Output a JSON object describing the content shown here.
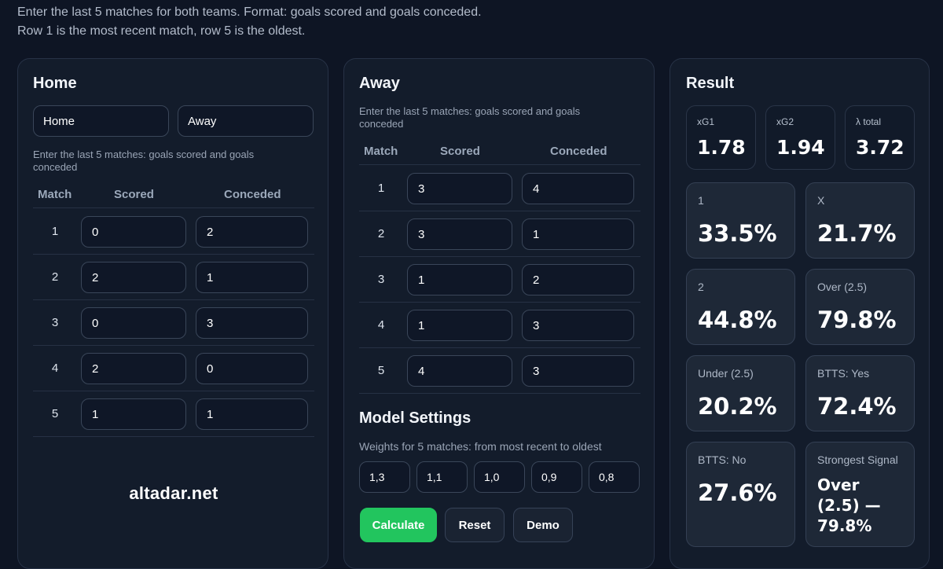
{
  "intro": {
    "line1": "Enter the last 5 matches for both teams. Format: goals scored and goals conceded.",
    "line2": "Row 1 is the most recent match, row 5 is the oldest."
  },
  "home": {
    "title": "Home",
    "team_home_value": "Home",
    "team_away_value": "Away",
    "hint": "Enter the last 5 matches: goals scored and goals conceded",
    "headers": [
      "Match",
      "Scored",
      "Conceded"
    ],
    "rows": [
      {
        "match": "1",
        "scored": "0",
        "conceded": "2"
      },
      {
        "match": "2",
        "scored": "2",
        "conceded": "1"
      },
      {
        "match": "3",
        "scored": "0",
        "conceded": "3"
      },
      {
        "match": "4",
        "scored": "2",
        "conceded": "0"
      },
      {
        "match": "5",
        "scored": "1",
        "conceded": "1"
      }
    ],
    "brand": "altadar.net"
  },
  "away": {
    "title": "Away",
    "hint": "Enter the last 5 matches: goals scored and goals conceded",
    "headers": [
      "Match",
      "Scored",
      "Conceded"
    ],
    "rows": [
      {
        "match": "1",
        "scored": "3",
        "conceded": "4"
      },
      {
        "match": "2",
        "scored": "3",
        "conceded": "1"
      },
      {
        "match": "3",
        "scored": "1",
        "conceded": "2"
      },
      {
        "match": "4",
        "scored": "1",
        "conceded": "3"
      },
      {
        "match": "5",
        "scored": "4",
        "conceded": "3"
      }
    ],
    "settings_title": "Model Settings",
    "weights_hint": "Weights for 5 matches: from most recent to oldest",
    "weights": [
      "1,3",
      "1,1",
      "1,0",
      "0,9",
      "0,8"
    ],
    "buttons": {
      "calculate": "Calculate",
      "reset": "Reset",
      "demo": "Demo"
    }
  },
  "result": {
    "title": "Result",
    "stats": [
      {
        "label": "xG1",
        "value": "1.78"
      },
      {
        "label": "xG2",
        "value": "1.94"
      },
      {
        "label": "λ total",
        "value": "3.72"
      }
    ],
    "cards": [
      {
        "label": "1",
        "value": "33.5%"
      },
      {
        "label": "X",
        "value": "21.7%"
      },
      {
        "label": "2",
        "value": "44.8%"
      },
      {
        "label": "Over (2.5)",
        "value": "79.8%"
      },
      {
        "label": "Under (2.5)",
        "value": "20.2%"
      },
      {
        "label": "BTTS: Yes",
        "value": "72.4%"
      },
      {
        "label": "BTTS: No",
        "value": "27.6%"
      },
      {
        "label": "Strongest Signal",
        "value": "Over (2.5) — 79.8%"
      }
    ]
  }
}
